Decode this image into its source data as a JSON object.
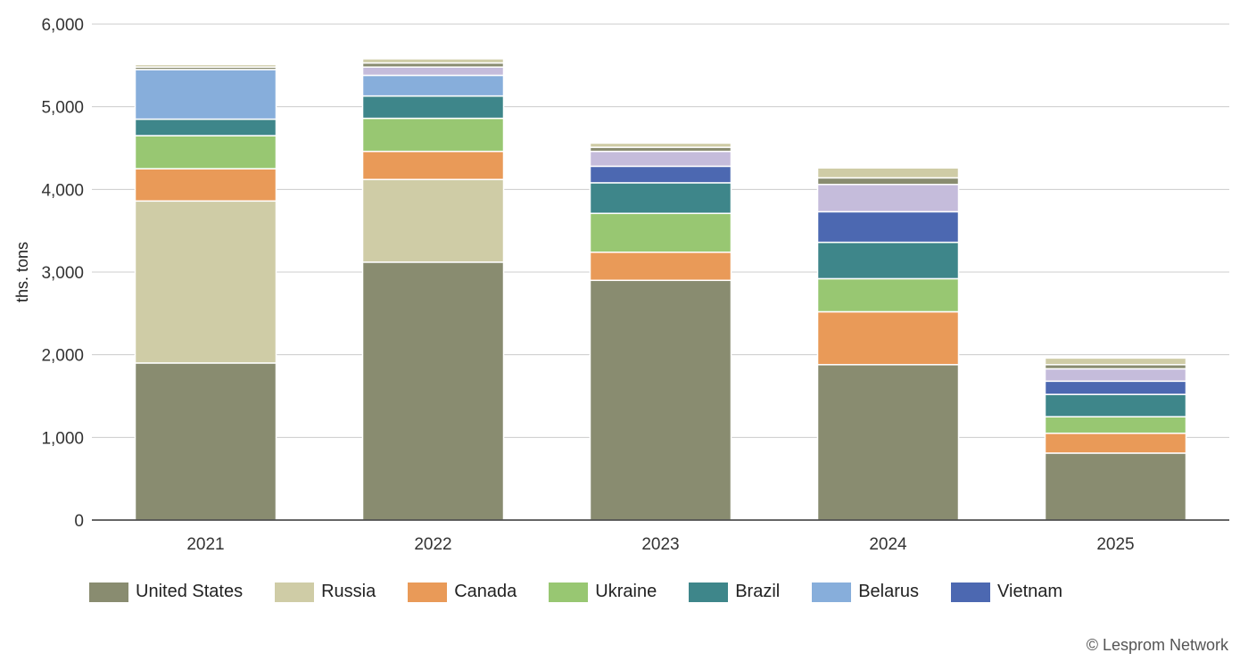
{
  "chart_data": {
    "type": "bar",
    "stacked": true,
    "categories": [
      "2021",
      "2022",
      "2023",
      "2024",
      "2025"
    ],
    "ylabel": "ths. tons",
    "xlabel": "",
    "ylim": [
      0,
      6000
    ],
    "yticks": [
      0,
      1000,
      2000,
      3000,
      4000,
      5000,
      6000
    ],
    "ytick_labels": [
      "0",
      "1,000",
      "2,000",
      "3,000",
      "4,000",
      "5,000",
      "6,000"
    ],
    "grid": true,
    "legend_position": "bottom",
    "series": [
      {
        "name": "United States",
        "color": "#898c70",
        "values": [
          1900,
          3120,
          2900,
          1880,
          810
        ]
      },
      {
        "name": "Russia",
        "color": "#cfcca6",
        "values": [
          1960,
          1000,
          0,
          0,
          0
        ]
      },
      {
        "name": "Canada",
        "color": "#e99a58",
        "values": [
          390,
          340,
          340,
          640,
          240
        ]
      },
      {
        "name": "Ukraine",
        "color": "#98c772",
        "values": [
          400,
          400,
          470,
          400,
          200
        ]
      },
      {
        "name": "Brazil",
        "color": "#3e868a",
        "values": [
          200,
          270,
          370,
          440,
          270
        ]
      },
      {
        "name": "Belarus",
        "color": "#87aedb",
        "values": [
          600,
          250,
          0,
          0,
          0
        ]
      },
      {
        "name": "Vietnam",
        "color": "#4c68b1",
        "values": [
          0,
          0,
          200,
          370,
          160
        ]
      },
      {
        "name": "",
        "color": "#c5bcdb",
        "values": [
          0,
          100,
          180,
          330,
          150
        ]
      },
      {
        "name": "",
        "color": "#898c70",
        "values": [
          30,
          50,
          50,
          80,
          50
        ]
      },
      {
        "name": "",
        "color": "#cfcca6",
        "values": [
          30,
          50,
          50,
          120,
          80
        ]
      }
    ]
  },
  "legend": [
    {
      "label": "United States",
      "color": "#898c70"
    },
    {
      "label": "Russia",
      "color": "#cfcca6"
    },
    {
      "label": "Canada",
      "color": "#e99a58"
    },
    {
      "label": "Ukraine",
      "color": "#98c772"
    },
    {
      "label": "Brazil",
      "color": "#3e868a"
    },
    {
      "label": "Belarus",
      "color": "#87aedb"
    },
    {
      "label": "Vietnam",
      "color": "#4c68b1"
    }
  ],
  "credit": "© Lesprom Network"
}
